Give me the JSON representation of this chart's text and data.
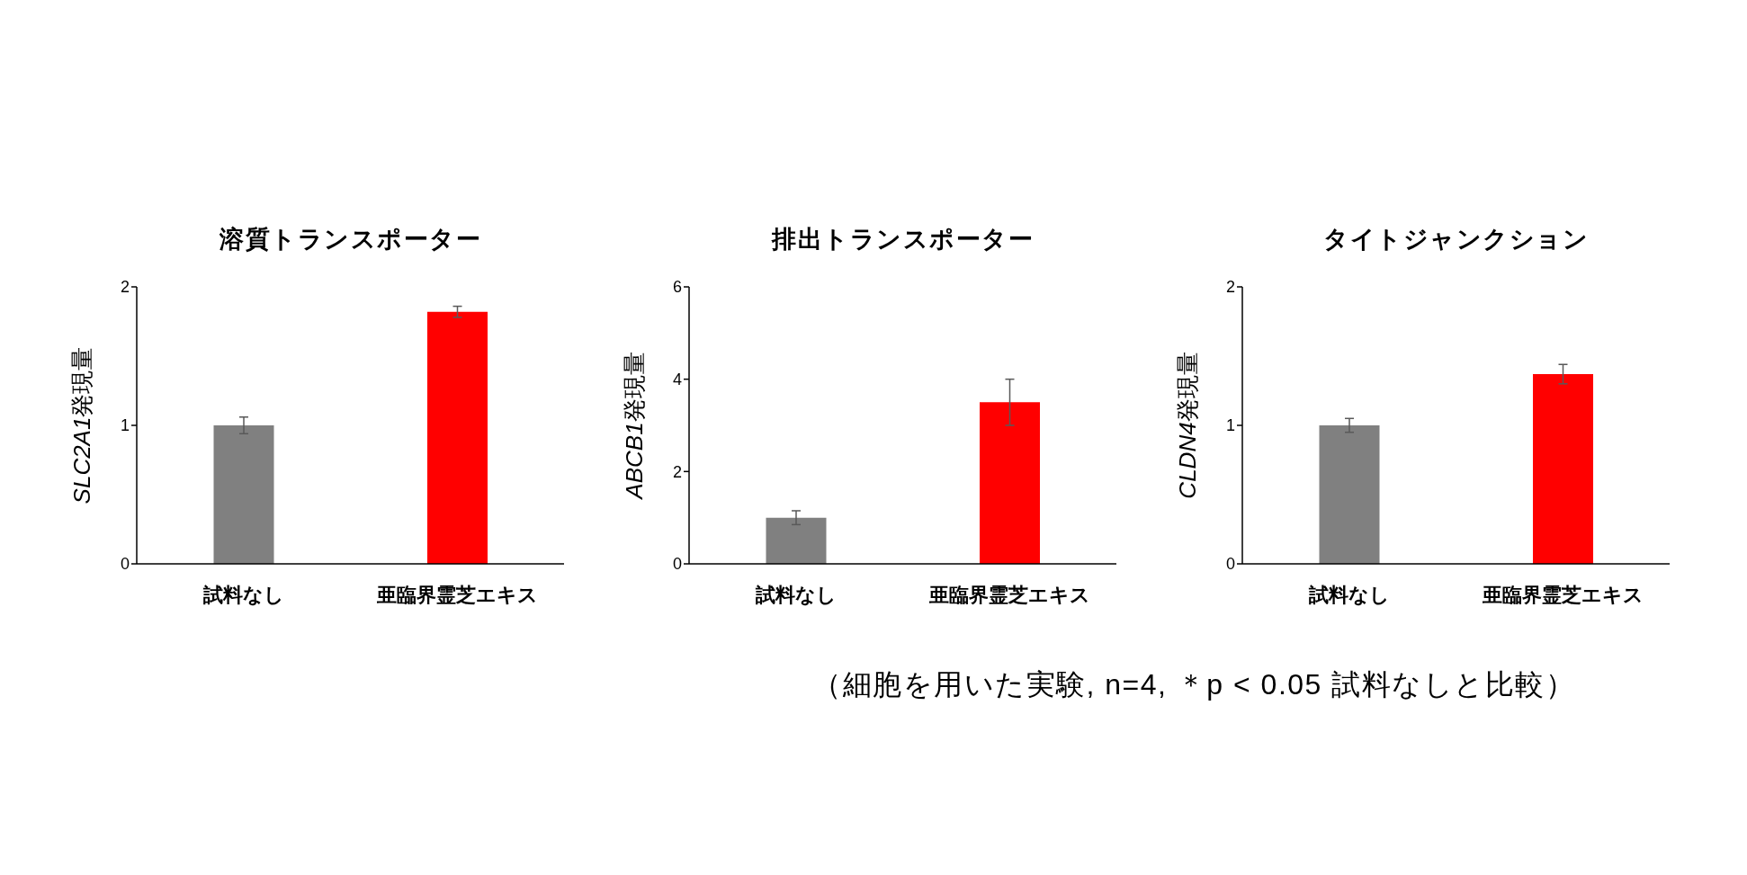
{
  "chart_data": [
    {
      "type": "bar",
      "title": "溶質トランスポーター",
      "ylabel": "SLC2A1発現量",
      "categories": [
        "試料なし",
        "亜臨界霊芝エキス"
      ],
      "values": [
        1.0,
        1.82
      ],
      "errors": [
        0.06,
        0.04
      ],
      "colors": [
        "#808080",
        "#ff0000"
      ],
      "ylim": [
        0,
        2
      ],
      "yticks": [
        0,
        1,
        2
      ]
    },
    {
      "type": "bar",
      "title": "排出トランスポーター",
      "ylabel": "ABCB1発現量",
      "categories": [
        "試料なし",
        "亜臨界霊芝エキス"
      ],
      "values": [
        1.0,
        3.5
      ],
      "errors": [
        0.15,
        0.5
      ],
      "colors": [
        "#808080",
        "#ff0000"
      ],
      "ylim": [
        0,
        6
      ],
      "yticks": [
        0,
        2,
        4,
        6
      ]
    },
    {
      "type": "bar",
      "title": "タイトジャンクション",
      "ylabel": "CLDN4発現量",
      "categories": [
        "試料なし",
        "亜臨界霊芝エキス"
      ],
      "values": [
        1.0,
        1.37
      ],
      "errors": [
        0.05,
        0.07
      ],
      "colors": [
        "#808080",
        "#ff0000"
      ],
      "ylim": [
        0,
        2
      ],
      "yticks": [
        0,
        1,
        2
      ],
      "annotations": [
        "（細胞を用いた実験, n=4, ＊p < 0.05 試料なしと比較）"
      ]
    }
  ]
}
